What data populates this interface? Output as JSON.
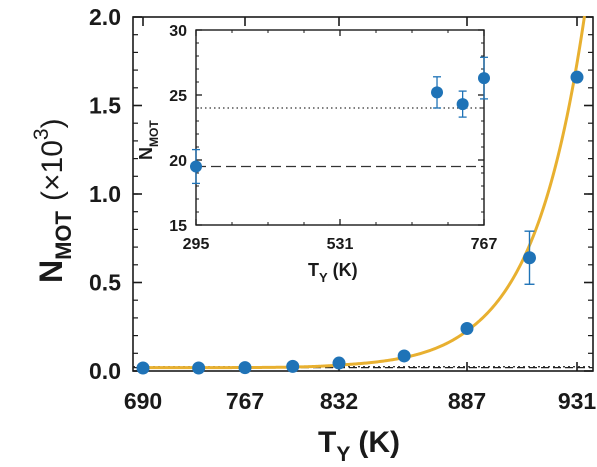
{
  "chart_data": [
    {
      "type": "scatter",
      "title": "",
      "xlabel": "T",
      "xlabel_sub": "Y",
      "xlabel_unit": "(K)",
      "ylabel": "N",
      "ylabel_sub": "MOT",
      "ylabel_factor": "(×10",
      "ylabel_exp": "3",
      "ylabel_close": ")",
      "xticks": [
        690,
        767,
        832,
        887,
        931
      ],
      "xtick_labels": [
        "690",
        "767",
        "832",
        "887",
        "931"
      ],
      "ylim": [
        0,
        2.0
      ],
      "yticks": [
        0,
        0.5,
        1.0,
        1.5,
        2.0
      ],
      "ytick_labels": [
        "0.0",
        "0.5",
        "1.0",
        "1.5",
        "2.0"
      ],
      "grid": false,
      "colors": {
        "points": "#1f73b7",
        "fit": "#e8b030",
        "reference": "#222222"
      },
      "series": [
        {
          "kind": "points",
          "x": [
            690,
            732,
            767,
            800,
            832,
            860,
            887,
            912,
            931
          ],
          "y": [
            0.017,
            0.017,
            0.019,
            0.026,
            0.045,
            0.085,
            0.24,
            0.64,
            1.66
          ],
          "yerr": [
            0,
            0,
            0,
            0,
            0,
            0,
            0,
            0.15,
            0
          ]
        },
        {
          "kind": "fit",
          "model": "a + b*exp(c*(x-931))",
          "params": {
            "a": 0.019,
            "b": 1.72,
            "c": 0.048
          },
          "x_range": [
            690,
            940
          ]
        },
        {
          "kind": "reference",
          "y": [
            0.019,
            0.024
          ]
        }
      ]
    },
    {
      "type": "scatter",
      "title": "",
      "xlabel": "T",
      "xlabel_sub": "Y",
      "xlabel_unit": "(K)",
      "ylabel": "N",
      "ylabel_sub": "MOT",
      "xlim": [
        295,
        767
      ],
      "xticks": [
        295,
        531,
        767
      ],
      "xtick_labels": [
        "295",
        "531",
        "767"
      ],
      "ylim": [
        15,
        30
      ],
      "yticks": [
        15,
        20,
        25,
        30
      ],
      "ytick_labels": [
        "15",
        "20",
        "25",
        "30"
      ],
      "grid": false,
      "series": [
        {
          "kind": "points",
          "x": [
            295,
            690,
            732,
            767
          ],
          "y": [
            19.5,
            25.2,
            24.3,
            26.3
          ],
          "yerr": [
            1.3,
            1.2,
            1.0,
            1.6
          ]
        },
        {
          "kind": "reference",
          "style": "dashed",
          "y": 19.5
        },
        {
          "kind": "reference",
          "style": "dotted",
          "y": 24.0
        }
      ]
    }
  ]
}
